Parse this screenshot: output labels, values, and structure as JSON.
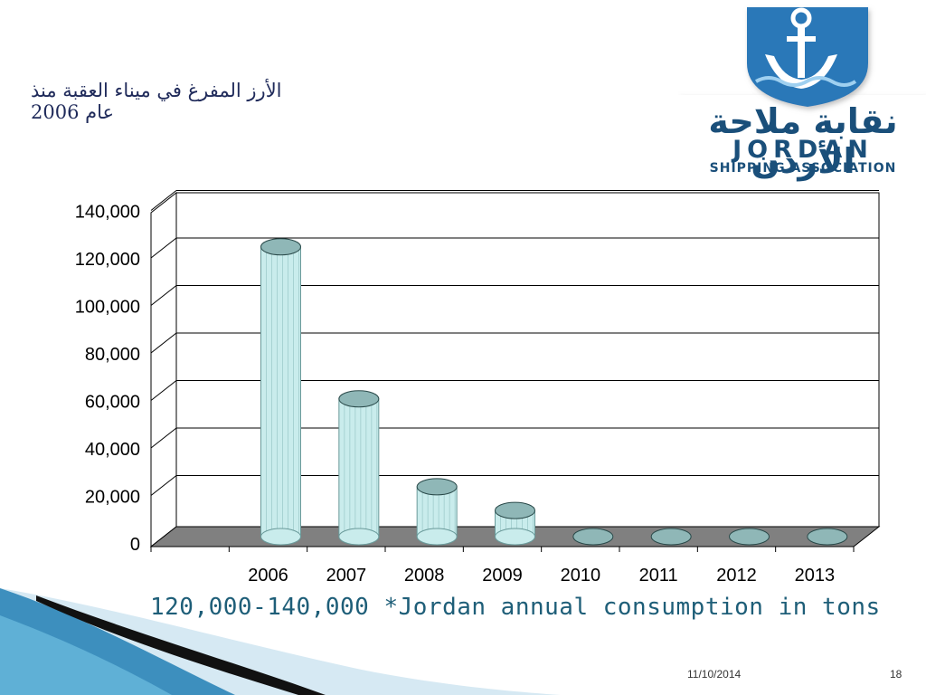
{
  "slide": {
    "title": "الأرز المفرغ في ميناء العقبة منذ عام 2006",
    "caption": "120,000-140,000 *Jordan annual consumption in tons",
    "footer_date": "11/10/2014",
    "footer_page": "18"
  },
  "logo": {
    "name_ar": "نقابة ملاحة الأردن",
    "name_en_line1": "JORDAN",
    "name_en_line2": "SHIPPING ASSOCIATION",
    "colors": {
      "primary": "#1a4f7a",
      "badge": "#2a78b8"
    }
  },
  "chart_data": {
    "type": "bar",
    "categories": [
      "2006",
      "2007",
      "2008",
      "2009",
      "2010",
      "2011",
      "2012",
      "2013"
    ],
    "values": [
      122000,
      58000,
      21000,
      11000,
      0,
      0,
      0,
      0
    ],
    "ylim": [
      0,
      140000
    ],
    "yticks": [
      "0",
      "20,000",
      "40,000",
      "60,000",
      "80,000",
      "100,000",
      "120,000",
      "140,000"
    ],
    "grid": true,
    "bar_color": "#c9ecec",
    "floor_color": "#808080"
  }
}
